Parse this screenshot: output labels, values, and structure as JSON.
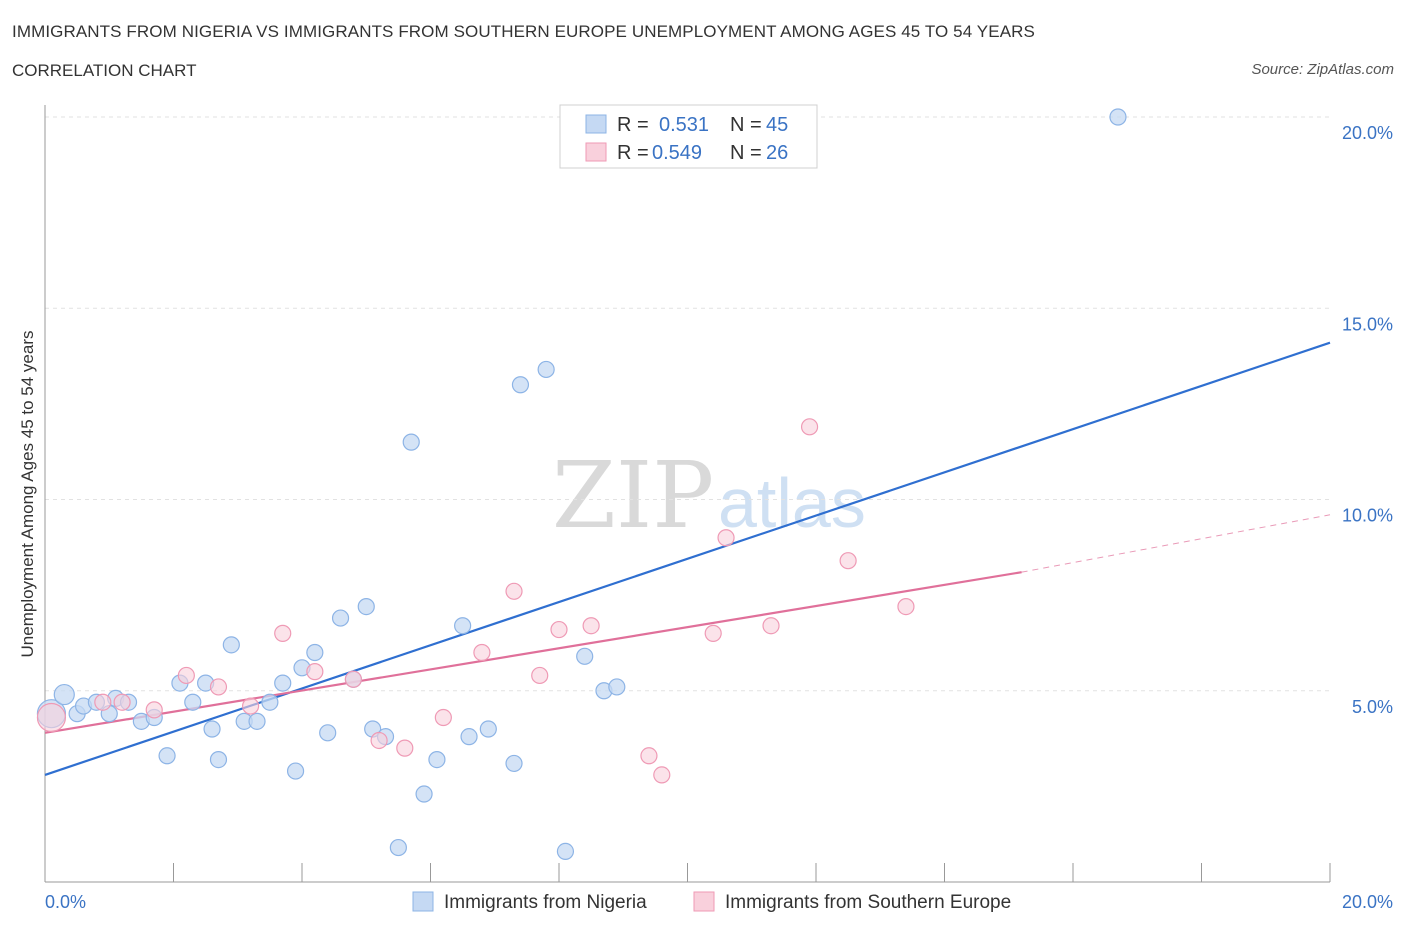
{
  "header": {
    "title": "IMMIGRANTS FROM NIGERIA VS IMMIGRANTS FROM SOUTHERN EUROPE UNEMPLOYMENT AMONG AGES 45 TO 54 YEARS",
    "subtitle": "CORRELATION CHART",
    "source": "Source: ZipAtlas.com"
  },
  "watermark": {
    "zip": "ZIP",
    "atlas": "atlas"
  },
  "legend": {
    "nigeria": {
      "r_label": "R =",
      "r_value": "0.531",
      "n_label": "N =",
      "n_value": "45"
    },
    "southern_europe": {
      "r_label": "R =",
      "r_value": "0.549",
      "n_label": "N =",
      "n_value": "26"
    }
  },
  "colors": {
    "nigeria_fill": "#c5d9f3",
    "nigeria_stroke": "#8db4e6",
    "nigeria_line": "#2f6fd0",
    "southern_fill": "#f9d0dc",
    "southern_stroke": "#ef9ab5",
    "southern_line": "#e0709a"
  },
  "chart_data": {
    "type": "scatter",
    "title": "IMMIGRANTS FROM NIGERIA VS IMMIGRANTS FROM SOUTHERN EUROPE UNEMPLOYMENT AMONG AGES 45 TO 54 YEARS",
    "xlabel": "",
    "ylabel": "Unemployment Among Ages 45 to 54 years",
    "xlim": [
      0,
      20
    ],
    "ylim": [
      0,
      20
    ],
    "x_tick_labels": [
      "0.0%",
      "20.0%"
    ],
    "y_ticks": [
      5,
      10,
      15,
      20
    ],
    "y_tick_labels": [
      "5.0%",
      "10.0%",
      "15.0%",
      "20.0%"
    ],
    "grid": true,
    "legend_position": "top-center",
    "series": [
      {
        "name": "Immigrants from Nigeria",
        "points": [
          [
            0.1,
            4.4
          ],
          [
            0.3,
            4.9
          ],
          [
            0.5,
            4.4
          ],
          [
            0.6,
            4.6
          ],
          [
            0.8,
            4.7
          ],
          [
            1.0,
            4.4
          ],
          [
            1.1,
            4.8
          ],
          [
            1.3,
            4.7
          ],
          [
            1.5,
            4.2
          ],
          [
            1.7,
            4.3
          ],
          [
            1.9,
            3.3
          ],
          [
            2.1,
            5.2
          ],
          [
            2.3,
            4.7
          ],
          [
            2.5,
            5.2
          ],
          [
            2.6,
            4.0
          ],
          [
            2.7,
            3.2
          ],
          [
            2.9,
            6.2
          ],
          [
            3.1,
            4.2
          ],
          [
            3.3,
            4.2
          ],
          [
            3.5,
            4.7
          ],
          [
            3.7,
            5.2
          ],
          [
            3.9,
            2.9
          ],
          [
            4.0,
            5.6
          ],
          [
            4.2,
            6.0
          ],
          [
            4.4,
            3.9
          ],
          [
            4.6,
            6.9
          ],
          [
            4.8,
            5.3
          ],
          [
            5.0,
            7.2
          ],
          [
            5.1,
            4.0
          ],
          [
            5.3,
            3.8
          ],
          [
            5.5,
            0.9
          ],
          [
            5.7,
            11.5
          ],
          [
            5.9,
            2.3
          ],
          [
            6.1,
            3.2
          ],
          [
            6.5,
            6.7
          ],
          [
            6.6,
            3.8
          ],
          [
            6.9,
            4.0
          ],
          [
            7.3,
            3.1
          ],
          [
            7.4,
            13.0
          ],
          [
            7.8,
            13.4
          ],
          [
            8.1,
            0.8
          ],
          [
            8.4,
            5.9
          ],
          [
            8.7,
            5.0
          ],
          [
            8.9,
            5.1
          ],
          [
            16.7,
            20.0
          ]
        ]
      },
      {
        "name": "Immigrants from Southern Europe",
        "points": [
          [
            0.1,
            4.3
          ],
          [
            0.9,
            4.7
          ],
          [
            1.2,
            4.7
          ],
          [
            1.7,
            4.5
          ],
          [
            2.2,
            5.4
          ],
          [
            2.7,
            5.1
          ],
          [
            3.2,
            4.6
          ],
          [
            3.7,
            6.5
          ],
          [
            4.2,
            5.5
          ],
          [
            4.8,
            5.3
          ],
          [
            5.2,
            3.7
          ],
          [
            5.6,
            3.5
          ],
          [
            6.2,
            4.3
          ],
          [
            6.8,
            6.0
          ],
          [
            7.3,
            7.6
          ],
          [
            7.7,
            5.4
          ],
          [
            8.0,
            6.6
          ],
          [
            8.5,
            6.7
          ],
          [
            9.4,
            3.3
          ],
          [
            9.6,
            2.8
          ],
          [
            10.4,
            6.5
          ],
          [
            10.6,
            9.0
          ],
          [
            11.3,
            6.7
          ],
          [
            11.9,
            11.9
          ],
          [
            12.5,
            8.4
          ],
          [
            13.4,
            7.2
          ]
        ]
      }
    ],
    "trend_lines": [
      {
        "name": "Immigrants from Nigeria",
        "x": [
          0,
          20
        ],
        "y": [
          2.8,
          14.1
        ]
      },
      {
        "name": "Immigrants from Southern Europe",
        "x": [
          0,
          15.2
        ],
        "y": [
          3.9,
          8.1
        ],
        "dashed_extension_to": [
          20,
          9.6
        ]
      }
    ]
  },
  "bottom_legend": {
    "nigeria_label": "Immigrants from Nigeria",
    "southern_label": "Immigrants from Southern Europe"
  }
}
